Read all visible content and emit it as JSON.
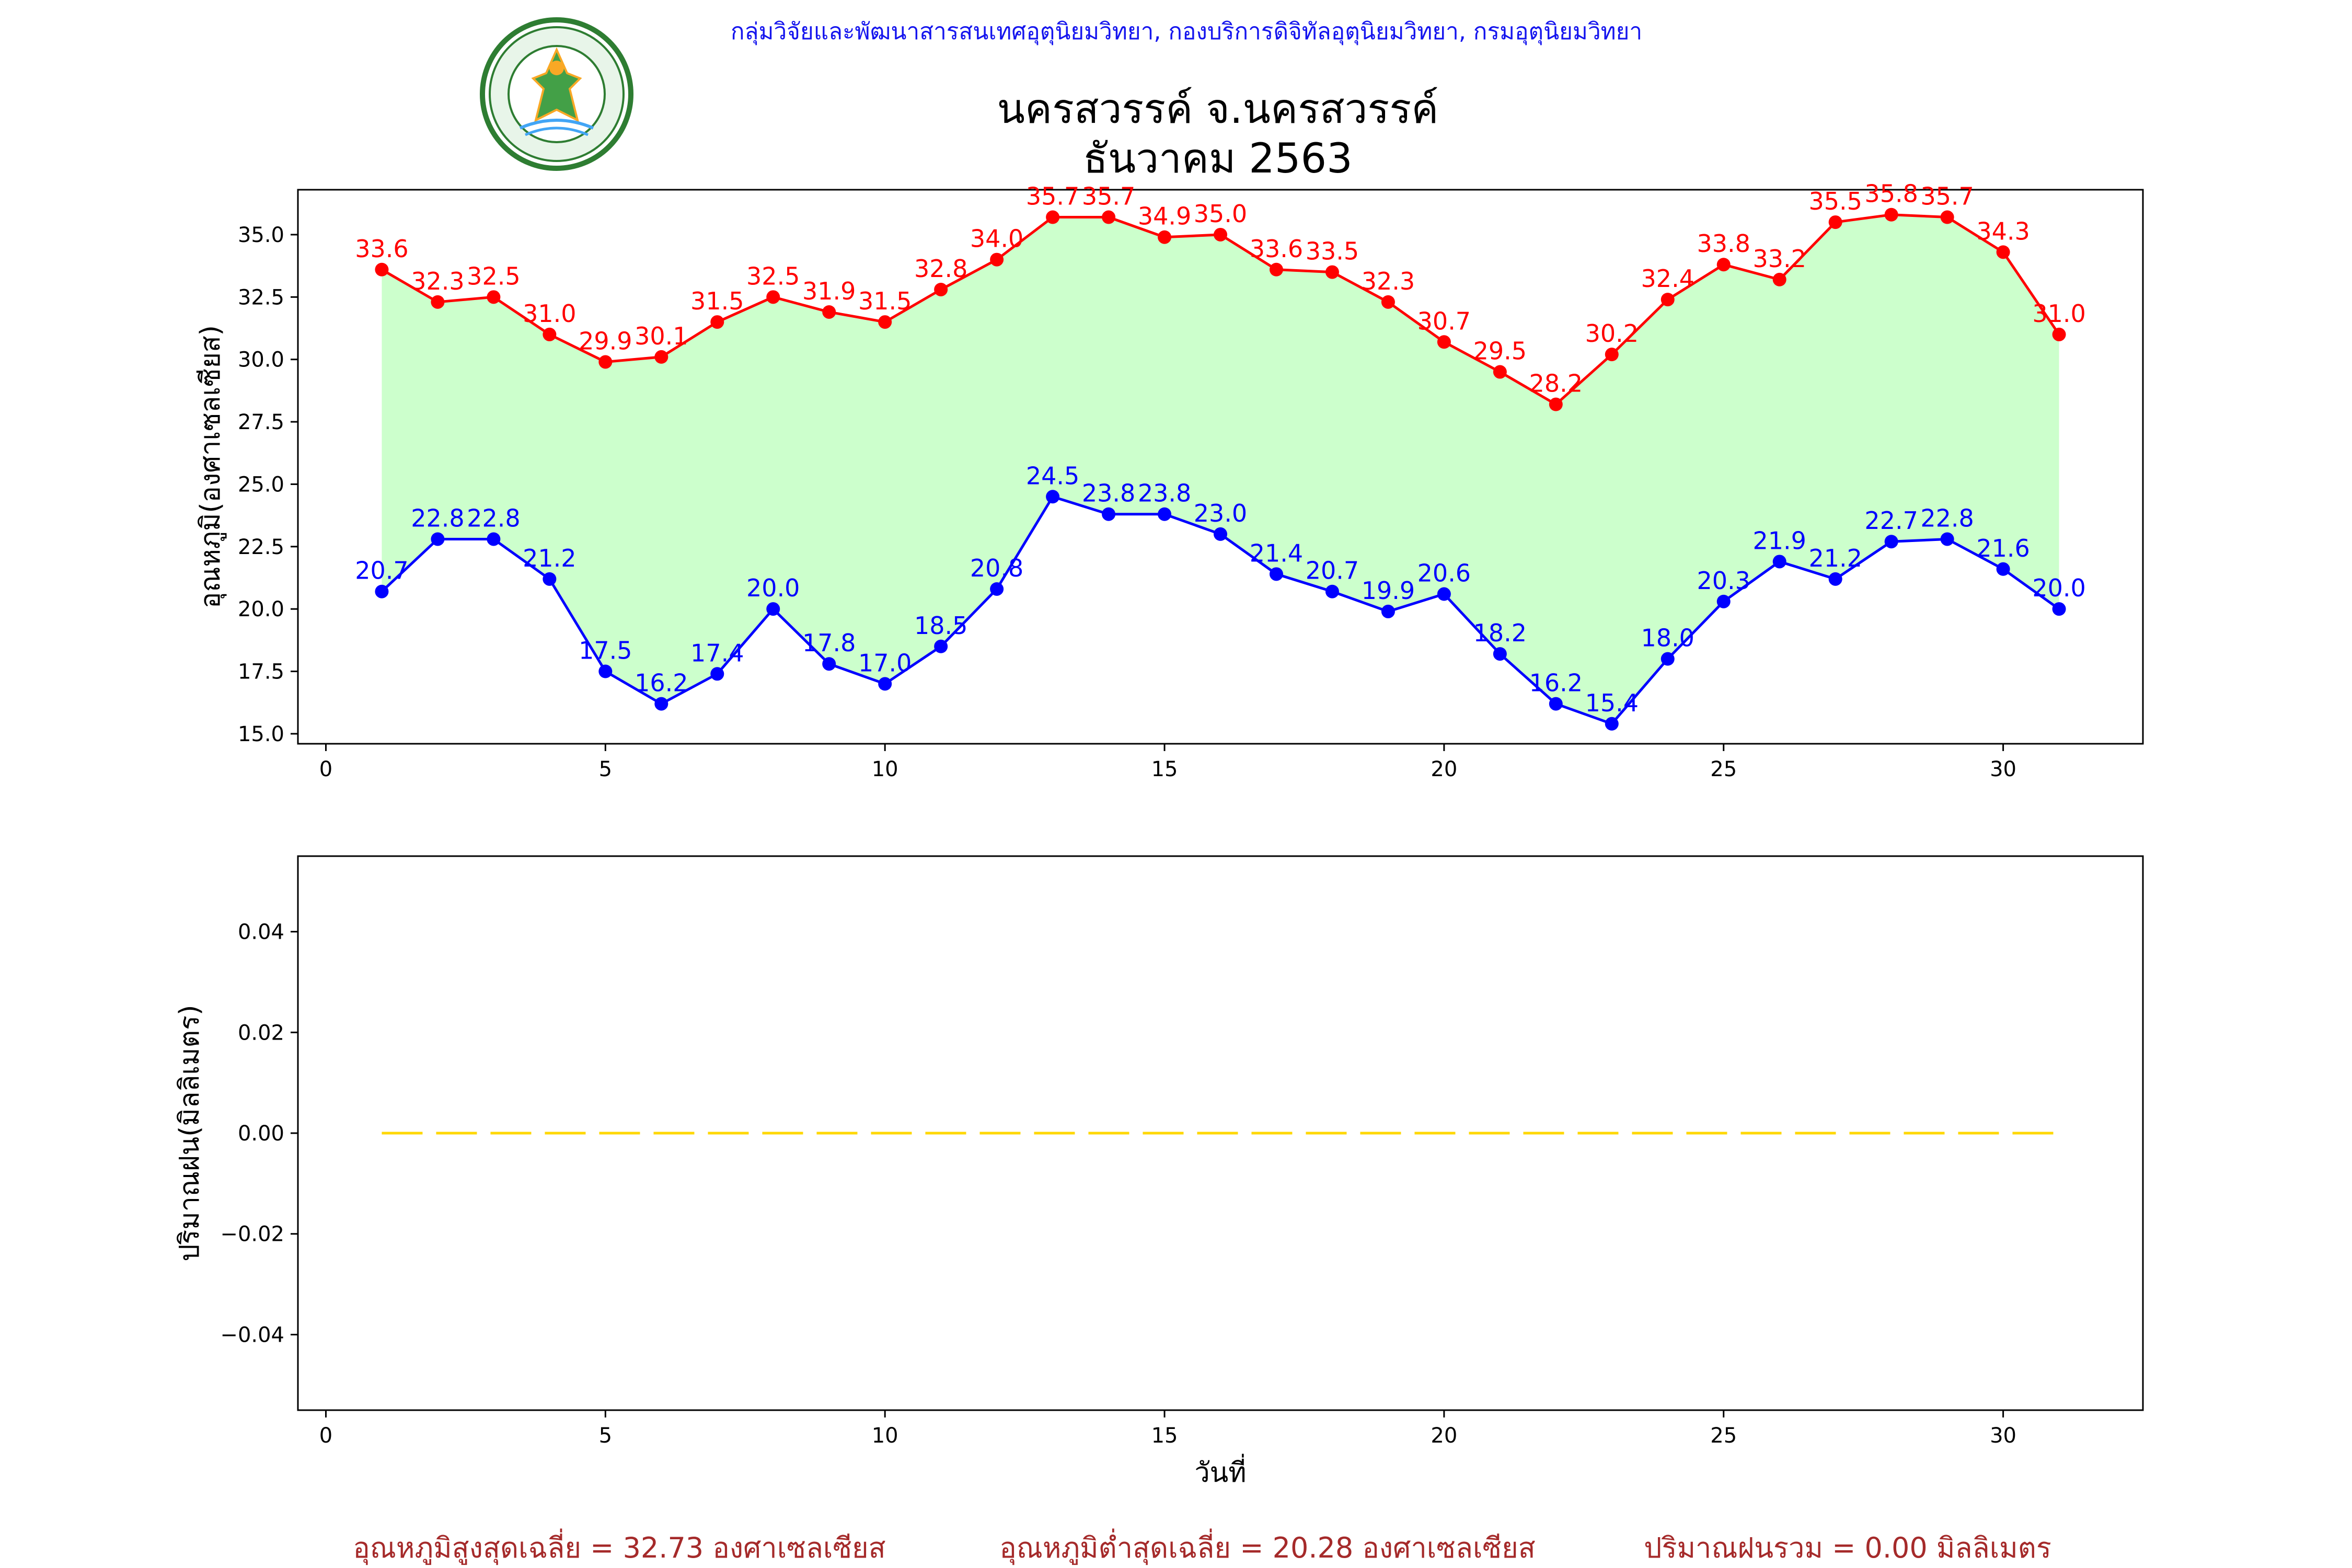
{
  "header": {
    "agency": "กลุ่มวิจัยและพัฒนาสารสนเทศอุตุนิยมวิทยา, กองบริการดิจิทัลอุตุนิยมวิทยา, กรมอุตุนิยมวิทยา",
    "station": "นครสวรรค์  จ.นครสวรรค์",
    "period": "ธันวาคม 2563",
    "logo_text": "กรมอุตุนิยมวิทยา",
    "logo_subtext": "METEOROLOGICAL DEPARTMENT"
  },
  "colors": {
    "agency": "#1515ee",
    "title": "#000000",
    "max": "#ff0000",
    "min": "#0000ff",
    "fill": "#ccffcc",
    "rain": "#ffd700",
    "footer": "#a52a2a"
  },
  "chart_data": [
    {
      "type": "line",
      "ylabel": "อุณหภูมิ(องศาเซลเซียส)",
      "xlabel": "",
      "xlim": [
        -0.5,
        32.5
      ],
      "ylim": [
        14.6,
        36.8
      ],
      "xticks": [
        0,
        5,
        10,
        15,
        20,
        25,
        30
      ],
      "yticks": [
        "15.0",
        "17.5",
        "20.0",
        "22.5",
        "25.0",
        "27.5",
        "30.0",
        "32.5",
        "35.0"
      ],
      "grid": false,
      "fill_between": "max-min",
      "x": [
        1,
        2,
        3,
        4,
        5,
        6,
        7,
        8,
        9,
        10,
        11,
        12,
        13,
        14,
        15,
        16,
        17,
        18,
        19,
        20,
        21,
        22,
        23,
        24,
        25,
        26,
        27,
        28,
        29,
        30,
        31
      ],
      "series": [
        {
          "key": "max",
          "values": [
            33.6,
            32.3,
            32.5,
            31.0,
            29.9,
            30.1,
            31.5,
            32.5,
            31.9,
            31.5,
            32.8,
            34.0,
            35.7,
            35.7,
            34.9,
            35.0,
            33.6,
            33.5,
            32.3,
            30.7,
            29.5,
            28.2,
            30.2,
            32.4,
            33.8,
            33.2,
            35.5,
            35.8,
            35.7,
            34.3,
            31.0
          ]
        },
        {
          "key": "min",
          "values": [
            20.7,
            22.8,
            22.8,
            21.2,
            17.5,
            16.2,
            17.4,
            20.0,
            17.8,
            17.0,
            18.5,
            20.8,
            24.5,
            23.8,
            23.8,
            23.0,
            21.4,
            20.7,
            19.9,
            20.6,
            18.2,
            16.2,
            15.4,
            18.0,
            20.3,
            21.9,
            21.2,
            22.7,
            22.8,
            21.6,
            20.0
          ]
        }
      ]
    },
    {
      "type": "line",
      "ylabel": "ปริมาณฝน(มิลลิเมตร)",
      "xlabel": "วันที่",
      "xlim": [
        -0.5,
        32.5
      ],
      "ylim": [
        -0.055,
        0.055
      ],
      "xticks": [
        0,
        5,
        10,
        15,
        20,
        25,
        30
      ],
      "yticks": [
        "0.04",
        "0.02",
        "0.00",
        "−0.02",
        "−0.04"
      ],
      "grid": false,
      "line_style": "dashed",
      "x": [
        1,
        2,
        3,
        4,
        5,
        6,
        7,
        8,
        9,
        10,
        11,
        12,
        13,
        14,
        15,
        16,
        17,
        18,
        19,
        20,
        21,
        22,
        23,
        24,
        25,
        26,
        27,
        28,
        29,
        30,
        31
      ],
      "series": [
        {
          "key": "rain",
          "values": [
            0,
            0,
            0,
            0,
            0,
            0,
            0,
            0,
            0,
            0,
            0,
            0,
            0,
            0,
            0,
            0,
            0,
            0,
            0,
            0,
            0,
            0,
            0,
            0,
            0,
            0,
            0,
            0,
            0,
            0,
            0
          ]
        }
      ]
    }
  ],
  "footer": {
    "max_avg": "อุณหภูมิสูงสุดเฉลี่ย = 32.73 องศาเซลเซียส",
    "min_avg": "อุณหภูมิต่ำสุดเฉลี่ย = 20.28 องศาเซลเซียส",
    "rain_total": "ปริมาณฝนรวม = 0.00 มิลลิเมตร"
  }
}
